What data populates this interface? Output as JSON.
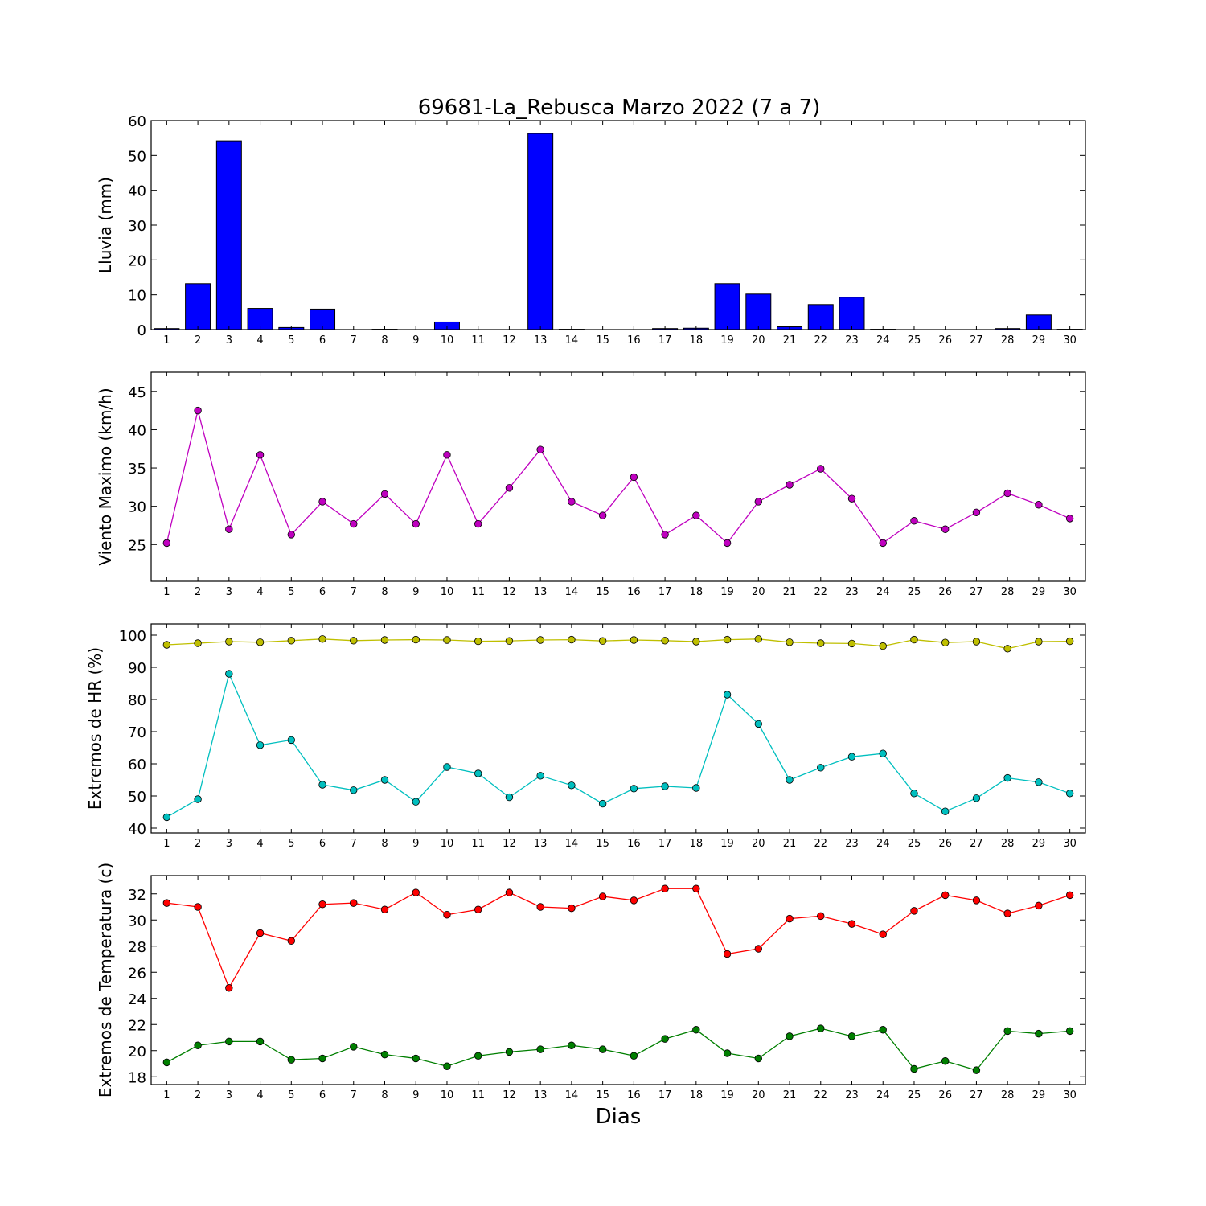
{
  "title": "69681-La_Rebusca Marzo 2022  (7 a 7)",
  "xlabel": "Dias",
  "chart_data": [
    {
      "type": "bar",
      "ylabel": "Lluvia (mm)",
      "ylim": [
        0,
        60
      ],
      "yticks": [
        0,
        10,
        20,
        30,
        40,
        50,
        60
      ],
      "x": [
        1,
        2,
        3,
        4,
        5,
        6,
        7,
        8,
        9,
        10,
        11,
        12,
        13,
        14,
        15,
        16,
        17,
        18,
        19,
        20,
        21,
        22,
        23,
        24,
        25,
        26,
        27,
        28,
        29,
        30
      ],
      "series": [
        {
          "color": "#0000ff",
          "values": [
            0.3,
            13.2,
            54.2,
            6.1,
            0.6,
            5.9,
            0,
            0.1,
            0,
            2.2,
            0,
            0,
            56.3,
            0.1,
            0,
            0,
            0.3,
            0.4,
            13.2,
            10.2,
            0.8,
            7.2,
            9.3,
            0.1,
            0,
            0,
            0,
            0.3,
            4.2,
            0.1
          ]
        }
      ]
    },
    {
      "type": "line",
      "ylabel": "Viento Maximo (km/h)",
      "ylim": [
        20.2,
        47.5
      ],
      "yticks": [
        25,
        30,
        35,
        40,
        45
      ],
      "x": [
        1,
        2,
        3,
        4,
        5,
        6,
        7,
        8,
        9,
        10,
        11,
        12,
        13,
        14,
        15,
        16,
        17,
        18,
        19,
        20,
        21,
        22,
        23,
        24,
        25,
        26,
        27,
        28,
        29,
        30
      ],
      "series": [
        {
          "color": "#bf00bf",
          "values": [
            25.2,
            42.5,
            27.0,
            36.7,
            26.3,
            30.6,
            27.7,
            31.6,
            27.7,
            36.7,
            27.7,
            32.4,
            37.4,
            30.6,
            28.8,
            33.8,
            26.3,
            28.8,
            25.2,
            30.6,
            32.8,
            34.9,
            31.0,
            25.2,
            28.1,
            27.0,
            29.2,
            31.7,
            30.2,
            28.4
          ]
        }
      ]
    },
    {
      "type": "line",
      "ylabel": "Extremos de HR (%)",
      "ylim": [
        38.5,
        103.5
      ],
      "yticks": [
        40,
        50,
        60,
        70,
        80,
        90,
        100
      ],
      "x": [
        1,
        2,
        3,
        4,
        5,
        6,
        7,
        8,
        9,
        10,
        11,
        12,
        13,
        14,
        15,
        16,
        17,
        18,
        19,
        20,
        21,
        22,
        23,
        24,
        25,
        26,
        27,
        28,
        29,
        30
      ],
      "series": [
        {
          "color": "#bfbf00",
          "values": [
            97.0,
            97.5,
            98.0,
            97.8,
            98.3,
            98.8,
            98.3,
            98.5,
            98.6,
            98.5,
            98.1,
            98.2,
            98.5,
            98.6,
            98.2,
            98.5,
            98.3,
            98.0,
            98.6,
            98.8,
            97.8,
            97.5,
            97.4,
            96.6,
            98.6,
            97.7,
            98.0,
            95.8,
            98.0,
            98.1
          ]
        },
        {
          "color": "#00bfbf",
          "values": [
            43.4,
            49.0,
            88.0,
            65.8,
            67.4,
            53.5,
            51.8,
            55.0,
            48.2,
            59.0,
            57.0,
            49.6,
            56.3,
            53.3,
            47.6,
            52.3,
            53.0,
            52.5,
            81.5,
            72.4,
            55.0,
            58.8,
            62.2,
            63.2,
            50.8,
            45.2,
            49.3,
            55.6,
            54.3,
            50.8
          ]
        }
      ]
    },
    {
      "type": "line",
      "ylabel": "Extremos de Temperatura (c)",
      "ylim": [
        17.4,
        33.4
      ],
      "yticks": [
        18,
        20,
        22,
        24,
        26,
        28,
        30,
        32
      ],
      "x": [
        1,
        2,
        3,
        4,
        5,
        6,
        7,
        8,
        9,
        10,
        11,
        12,
        13,
        14,
        15,
        16,
        17,
        18,
        19,
        20,
        21,
        22,
        23,
        24,
        25,
        26,
        27,
        28,
        29,
        30
      ],
      "series": [
        {
          "color": "#ff0000",
          "values": [
            31.3,
            31.0,
            24.8,
            29.0,
            28.4,
            31.2,
            31.3,
            30.8,
            32.1,
            30.4,
            30.8,
            32.1,
            31.0,
            30.9,
            31.8,
            31.5,
            32.4,
            32.4,
            27.4,
            27.8,
            30.1,
            30.3,
            29.7,
            28.9,
            30.7,
            31.9,
            31.5,
            30.5,
            31.1,
            31.9
          ]
        },
        {
          "color": "#007f00",
          "values": [
            19.1,
            20.4,
            20.7,
            20.7,
            19.3,
            19.4,
            20.3,
            19.7,
            19.4,
            18.8,
            19.6,
            19.9,
            20.1,
            20.4,
            20.1,
            19.6,
            20.9,
            21.6,
            19.8,
            19.4,
            21.1,
            21.7,
            21.1,
            21.6,
            18.6,
            19.2,
            18.5,
            21.5,
            21.3,
            21.5
          ]
        }
      ]
    }
  ]
}
